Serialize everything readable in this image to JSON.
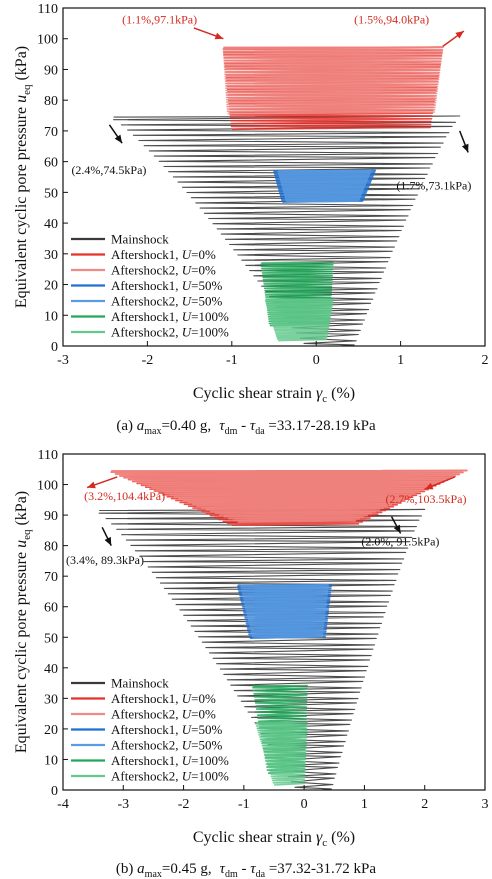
{
  "chart_data": [
    {
      "panel": "a",
      "type": "line",
      "caption": "(a) a_max=0.40 g, τ_dm - τ_da =33.17-28.19 kPa",
      "caption_parts": {
        "prefix": "(a) ",
        "a_sym": "a",
        "a_sub": "max",
        "a_val": "=0.40 g,",
        "t1": "τ",
        "t1_sub": "dm",
        "dash": " - ",
        "t2": "τ",
        "t2_sub": "da",
        "t_val": " =33.17-28.19 kPa"
      },
      "xlabel": {
        "text": "Cyclic shear strain ",
        "sym": "γ",
        "sub": "c",
        "unit": " (%)"
      },
      "ylabel": {
        "text": "Equivalent cyclic pore pressure ",
        "sym": "u",
        "sub": "eq",
        "unit": " (kPa)"
      },
      "xlim": [
        -3,
        2
      ],
      "ylim": [
        0,
        110
      ],
      "xticks": [
        "-3",
        "-2",
        "-1",
        "0",
        "1",
        "2"
      ],
      "yticks": [
        "0",
        "10",
        "20",
        "30",
        "40",
        "50",
        "60",
        "70",
        "80",
        "90",
        "100",
        "110"
      ],
      "legend_position": "lower-left",
      "legend": [
        {
          "prefix": "Mainshock",
          "var": "",
          "suffix": "",
          "color": "#3a3a3a"
        },
        {
          "prefix": "Aftershock1, ",
          "var": "U",
          "suffix": "=0%",
          "color": "#e8302a"
        },
        {
          "prefix": "Aftershock2, ",
          "var": "U",
          "suffix": "=0%",
          "color": "#f08a85"
        },
        {
          "prefix": "Aftershock1, ",
          "var": "U",
          "suffix": "=50%",
          "color": "#1f6fd1"
        },
        {
          "prefix": "Aftershock2, ",
          "var": "U",
          "suffix": "=50%",
          "color": "#5b9be0"
        },
        {
          "prefix": "Aftershock1, ",
          "var": "U",
          "suffix": "=100%",
          "color": "#22a85a"
        },
        {
          "prefix": "Aftershock2, ",
          "var": "U",
          "suffix": "=100%",
          "color": "#63c98d"
        }
      ],
      "series": [
        {
          "name": "Mainshock",
          "color": "#3a3a3a",
          "ymax": 74.5,
          "ymin": 0,
          "xleft_top": -2.4,
          "xright_top": 1.7,
          "xleft_bottom": -0.1,
          "xright_bottom": 0.45,
          "cycles": 44
        },
        {
          "name": "Aftershock1, U=0%",
          "color": "#e8302a",
          "ymin": 71,
          "ymax": 97.1,
          "xleft_top": -1.1,
          "xright_top": 1.5,
          "xleft_bottom": -1.0,
          "xright_bottom": 1.35
        },
        {
          "name": "Aftershock2, U=0%",
          "color": "#f08a85",
          "ymin": 76,
          "ymax": 97.1,
          "xleft_top": -1.1,
          "xright_top": 1.5,
          "xleft_bottom": -1.05,
          "xright_bottom": 1.4
        },
        {
          "name": "Aftershock1, U=50%",
          "color": "#1f6fd1",
          "ymin": 47,
          "ymax": 57,
          "xleft_top": -0.5,
          "xright_top": 0.7,
          "xleft_bottom": -0.4,
          "xright_bottom": 0.55
        },
        {
          "name": "Aftershock2, U=50%",
          "color": "#5b9be0",
          "ymin": 47,
          "ymax": 57,
          "xleft_top": -0.45,
          "xright_top": 0.65,
          "xleft_bottom": -0.35,
          "xright_bottom": 0.5
        },
        {
          "name": "Aftershock1, U=100%",
          "color": "#22a85a",
          "ymin": 7,
          "ymax": 27,
          "xleft_top": -0.65,
          "xright_top": 0.2,
          "xleft_bottom": -0.55,
          "xright_bottom": 0.15
        },
        {
          "name": "Aftershock2, U=100%",
          "color": "#63c98d",
          "ymin": 2,
          "ymax": 15,
          "xleft_top": -0.6,
          "xright_top": 0.2,
          "xleft_bottom": -0.45,
          "xright_bottom": 0.12
        }
      ],
      "annotations": [
        {
          "text": "(1.1%,97.1kPa)",
          "color": "#d42b20",
          "x": -1.2,
          "y": 101,
          "tx": -2.3,
          "ty": 105,
          "anchor": "start"
        },
        {
          "text": "(1.5%,94.0kPa)",
          "color": "#d42b20",
          "x": 1.55,
          "y": 97,
          "tx": 0.45,
          "ty": 105,
          "anchor": "start"
        },
        {
          "text": "(2.4%,74.5kPa)",
          "color": "#111111",
          "x": -2.4,
          "y": 70,
          "tx": -2.9,
          "ty": 56,
          "anchor": "start"
        },
        {
          "text": "(1.7%,73.1kPa)",
          "color": "#111111",
          "x": 1.7,
          "y": 70,
          "tx": 0.95,
          "ty": 51,
          "anchor": "start"
        }
      ],
      "arrows": [
        {
          "color": "#d42b20",
          "x1": -1.45,
          "y1": 103.5,
          "x2": -1.1,
          "y2": 100
        },
        {
          "color": "#d42b20",
          "x1": 1.5,
          "y1": 97.5,
          "x2": 1.75,
          "y2": 102.5
        },
        {
          "color": "#111111",
          "x1": -2.45,
          "y1": 72,
          "x2": -2.3,
          "y2": 66
        },
        {
          "color": "#111111",
          "x1": 1.7,
          "y1": 70,
          "x2": 1.8,
          "y2": 63
        }
      ]
    },
    {
      "panel": "b",
      "type": "line",
      "caption": "(b) a_max=0.45 g, τ_dm - τ_da =37.32-31.72 kPa",
      "caption_parts": {
        "prefix": "(b) ",
        "a_sym": "a",
        "a_sub": "max",
        "a_val": "=0.45 g,",
        "t1": "τ",
        "t1_sub": "dm",
        "dash": " - ",
        "t2": "τ",
        "t2_sub": "da",
        "t_val": " =37.32-31.72 kPa"
      },
      "xlabel": {
        "text": "Cyclic shear strain ",
        "sym": "γ",
        "sub": "c",
        "unit": " (%)"
      },
      "ylabel": {
        "text": "Equivalent cyclic pore pressure ",
        "sym": "u",
        "sub": "eq",
        "unit": " (kPa)"
      },
      "xlim": [
        -4,
        3
      ],
      "ylim": [
        0,
        110
      ],
      "xticks": [
        "-4",
        "-3",
        "-2",
        "-1",
        "0",
        "1",
        "2",
        "3"
      ],
      "yticks": [
        "0",
        "10",
        "20",
        "30",
        "40",
        "50",
        "60",
        "70",
        "80",
        "90",
        "100",
        "110"
      ],
      "legend_position": "lower-left",
      "legend": [
        {
          "prefix": "Mainshock",
          "var": "",
          "suffix": "",
          "color": "#3a3a3a"
        },
        {
          "prefix": "Aftershock1, ",
          "var": "U",
          "suffix": "=0%",
          "color": "#e8302a"
        },
        {
          "prefix": "Aftershock2, ",
          "var": "U",
          "suffix": "=0%",
          "color": "#f08a85"
        },
        {
          "prefix": "Aftershock1, ",
          "var": "U",
          "suffix": "=50%",
          "color": "#1f6fd1"
        },
        {
          "prefix": "Aftershock2, ",
          "var": "U",
          "suffix": "=50%",
          "color": "#5b9be0"
        },
        {
          "prefix": "Aftershock1, ",
          "var": "U",
          "suffix": "=100%",
          "color": "#22a85a"
        },
        {
          "prefix": "Aftershock2, ",
          "var": "U",
          "suffix": "=100%",
          "color": "#63c98d"
        }
      ],
      "series": [
        {
          "name": "Mainshock",
          "color": "#3a3a3a",
          "ymax": 91.5,
          "ymin": 0,
          "xleft_top": -3.4,
          "xright_top": 2.0,
          "xleft_bottom": -0.1,
          "xright_bottom": 0.45,
          "cycles": 52
        },
        {
          "name": "Aftershock1, U=0%",
          "color": "#e8302a",
          "ymin": 87,
          "ymax": 104.4,
          "xleft_top": -3.2,
          "xright_top": 2.7,
          "xleft_bottom": -1.2,
          "xright_bottom": 0.9
        },
        {
          "name": "Aftershock2, U=0%",
          "color": "#f08a85",
          "ymin": 88,
          "ymax": 104.4,
          "xleft_top": -3.2,
          "xright_top": 2.7,
          "xleft_bottom": -1.1,
          "xright_bottom": 0.85
        },
        {
          "name": "Aftershock1, U=50%",
          "color": "#1f6fd1",
          "ymin": 50,
          "ymax": 67,
          "xleft_top": -1.1,
          "xright_top": 0.45,
          "xleft_bottom": -0.9,
          "xright_bottom": 0.35
        },
        {
          "name": "Aftershock2, U=50%",
          "color": "#5b9be0",
          "ymin": 50,
          "ymax": 67,
          "xleft_top": -1.05,
          "xright_top": 0.4,
          "xleft_bottom": -0.85,
          "xright_bottom": 0.3
        },
        {
          "name": "Aftershock1, U=100%",
          "color": "#22a85a",
          "ymin": 6,
          "ymax": 34,
          "xleft_top": -0.85,
          "xright_top": 0.05,
          "xleft_bottom": -0.6,
          "xright_bottom": 0.0
        },
        {
          "name": "Aftershock2, U=100%",
          "color": "#63c98d",
          "ymin": 2,
          "ymax": 22,
          "xleft_top": -0.8,
          "xright_top": 0.05,
          "xleft_bottom": -0.5,
          "xright_bottom": 0.0
        }
      ],
      "annotations": [
        {
          "text": "(3.2%,104.4kPa)",
          "color": "#d42b20",
          "x": -3.2,
          "y": 104,
          "tx": -3.65,
          "ty": 95,
          "anchor": "start"
        },
        {
          "text": "(2.7%,103.5kPa)",
          "color": "#d42b20",
          "x": 2.7,
          "y": 103,
          "tx": 1.35,
          "ty": 94,
          "anchor": "start"
        },
        {
          "text": "(3.4%, 89.3kPa)",
          "color": "#111111",
          "x": -3.4,
          "y": 87,
          "tx": -3.95,
          "ty": 74,
          "anchor": "start"
        },
        {
          "text": "(2.0%, 91.5kPa)",
          "color": "#111111",
          "x": 2.0,
          "y": 89,
          "tx": 0.95,
          "ty": 80,
          "anchor": "start"
        }
      ],
      "arrows": [
        {
          "color": "#d42b20",
          "x1": -3.1,
          "y1": 102.5,
          "x2": -3.6,
          "y2": 99
        },
        {
          "color": "#d42b20",
          "x1": 2.5,
          "y1": 102.5,
          "x2": 2.0,
          "y2": 98.5
        },
        {
          "color": "#111111",
          "x1": -3.35,
          "y1": 86,
          "x2": -3.2,
          "y2": 80
        },
        {
          "color": "#111111",
          "x1": 1.45,
          "y1": 89.5,
          "x2": 1.6,
          "y2": 84
        }
      ]
    }
  ]
}
